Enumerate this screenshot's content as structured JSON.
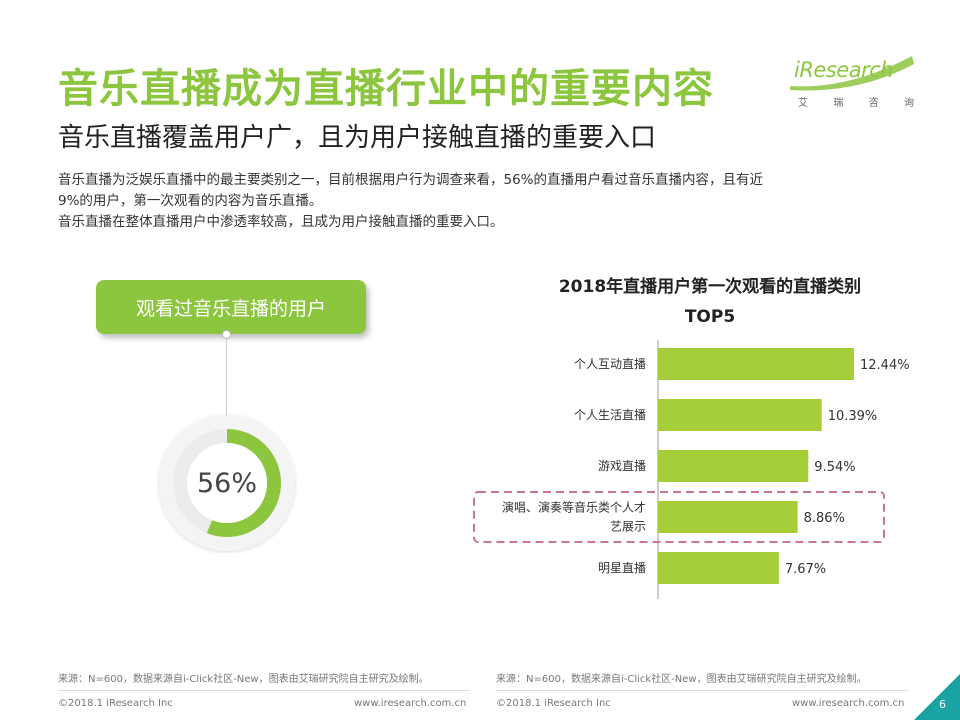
{
  "header": {
    "title": "音乐直播成为直播行业中的重要内容",
    "subtitle": "音乐直播覆盖用户广，且为用户接触直播的重要入口",
    "desc_line1": "音乐直播为泛娱乐直播中的最主要类别之一，目前根据用户行为调查来看，56%的直播用户看过音乐直播内容，且有近",
    "desc_line2": "9%的用户，第一次观看的内容为音乐直播。",
    "desc_line3": "音乐直播在整体直播用户中渗透率较高，且成为用户接触直播的重要入口。"
  },
  "logo": {
    "word": "iResearch",
    "cn": [
      "艾",
      "瑞",
      "咨",
      "询"
    ]
  },
  "left_panel": {
    "badge": "观看过音乐直播的用户",
    "percent_label": "56%",
    "percent_value": 56
  },
  "chart_data": {
    "type": "bar",
    "orientation": "horizontal",
    "title_line1": "2018年直播用户第一次观看的直播类别",
    "title_line2": "TOP5",
    "categories": [
      "个人互动直播",
      "个人生活直播",
      "游戏直播",
      "演唱、演奏等音乐类个人才艺展示",
      "明星直播"
    ],
    "category_lines": [
      [
        "个人互动直播"
      ],
      [
        "个人生活直播"
      ],
      [
        "游戏直播"
      ],
      [
        "演唱、演奏等音乐类个人才",
        "艺展示"
      ],
      [
        "明星直播"
      ]
    ],
    "values": [
      12.44,
      10.39,
      9.54,
      8.86,
      7.67
    ],
    "value_labels": [
      "12.44%",
      "10.39%",
      "9.54%",
      "8.86%",
      "7.67%"
    ],
    "xlim": [
      0,
      14
    ],
    "highlight_index": 3,
    "bar_color": "#a6ce39",
    "highlight_border_color": "#c9788a"
  },
  "footer": {
    "source_left": "来源：N=600，数据来源自i-Click社区-New，图表由艾瑞研究院自主研究及绘制。",
    "source_right": "来源：N=600，数据来源自i-Click社区-New，图表由艾瑞研究院自主研究及绘制。",
    "copy_left": "©2018.1 iResearch Inc",
    "url_left": "www.iresearch.com.cn",
    "copy_right": "©2018.1 iResearch Inc",
    "url_right": "www.iresearch.com.cn",
    "page": "6"
  },
  "colors": {
    "accent": "#8cc63f",
    "page_triangle": "#1aa3a3"
  }
}
